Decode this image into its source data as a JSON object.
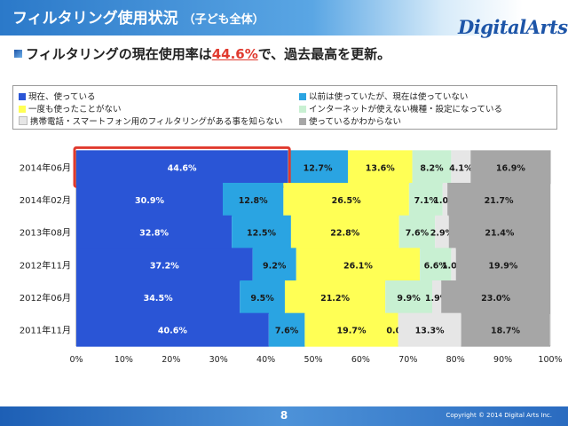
{
  "header": {
    "title": "フィルタリング使用状況",
    "title_suffix": "（子ども全体）",
    "logo_text": "DigitalArts."
  },
  "headline": {
    "prefix": "フィルタリングの現在使用率は",
    "highlight": "44.6%",
    "suffix": "で、過去最高を更新。"
  },
  "footer": {
    "page": "8",
    "copyright": "Copyright © 2014 Digital Arts Inc."
  },
  "colors": {
    "accent_red": "#e03a2f",
    "header_blue": "#2b79c9"
  },
  "chart_data": {
    "type": "bar",
    "orientation": "horizontal",
    "stacked": true,
    "percent": true,
    "categories": [
      "2014年06月",
      "2014年02月",
      "2013年08月",
      "2012年11月",
      "2012年06月",
      "2011年11月"
    ],
    "series": [
      {
        "name": "現在、使っている",
        "color": "#2a55d6",
        "text_color": "#ffffff",
        "values": [
          44.6,
          30.9,
          32.8,
          37.2,
          34.5,
          40.6
        ]
      },
      {
        "name": "以前は使っていたが、現在は使っていない",
        "color": "#2aa4e2",
        "text_color": "#1a1a1a",
        "values": [
          12.7,
          12.8,
          12.5,
          9.2,
          9.5,
          7.6
        ]
      },
      {
        "name": "一度も使ったことがない",
        "color": "#ffff55",
        "text_color": "#1a1a1a",
        "values": [
          13.6,
          26.5,
          22.8,
          26.1,
          21.2,
          19.7
        ]
      },
      {
        "name": "インターネットが使えない機種・設定になっている",
        "color": "#c8f0d2",
        "text_color": "#1a1a1a",
        "values": [
          8.2,
          7.1,
          7.6,
          6.6,
          9.9,
          0.0
        ]
      },
      {
        "name": "携帯電話・スマートフォン用のフィルタリングがある事を知らない",
        "color": "#e6e6e6",
        "text_color": "#1a1a1a",
        "values": [
          4.1,
          1.0,
          2.9,
          1.0,
          1.9,
          13.3
        ]
      },
      {
        "name": "使っているかわからない",
        "color": "#a6a6a6",
        "text_color": "#1a1a1a",
        "values": [
          16.9,
          21.7,
          21.4,
          19.9,
          23.0,
          18.7
        ]
      }
    ],
    "xlim": [
      0,
      100
    ],
    "x_ticks": [
      "0%",
      "10%",
      "20%",
      "30%",
      "40%",
      "50%",
      "60%",
      "70%",
      "80%",
      "90%",
      "100%"
    ],
    "legend_position": "top",
    "highlight_category": "2014年06月",
    "grid": true
  }
}
